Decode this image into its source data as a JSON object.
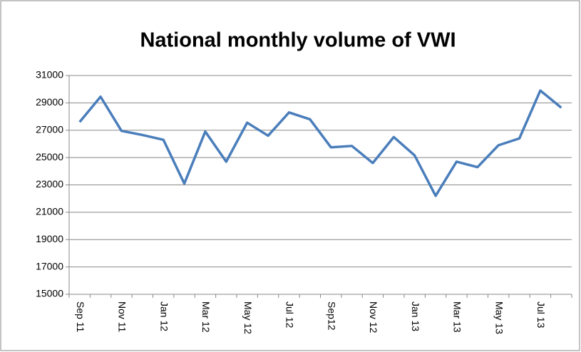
{
  "chart_data": {
    "type": "line",
    "title": "National monthly volume of VWI",
    "categories": [
      "Sep 11",
      null,
      "Nov 11",
      null,
      "Jan 12",
      null,
      "Mar 12",
      null,
      "May 12",
      null,
      "Jul 12",
      null,
      "Sep12",
      null,
      "Nov 12",
      null,
      "Jan 13",
      null,
      "Mar 13",
      null,
      "May 13",
      null,
      "Jul 13",
      null
    ],
    "series": [
      {
        "name": "VWI",
        "color": "#4a7ebb",
        "values": [
          27600,
          29450,
          26950,
          26650,
          26300,
          23100,
          26900,
          24700,
          27550,
          26600,
          28300,
          27800,
          25750,
          25850,
          24600,
          26500,
          25150,
          22200,
          24700,
          24300,
          25900,
          26400,
          29900,
          28650
        ]
      }
    ],
    "ylim": [
      15000,
      31000
    ],
    "yticks": [
      15000,
      17000,
      19000,
      21000,
      23000,
      25000,
      27000,
      29000,
      31000
    ],
    "grid": true
  }
}
